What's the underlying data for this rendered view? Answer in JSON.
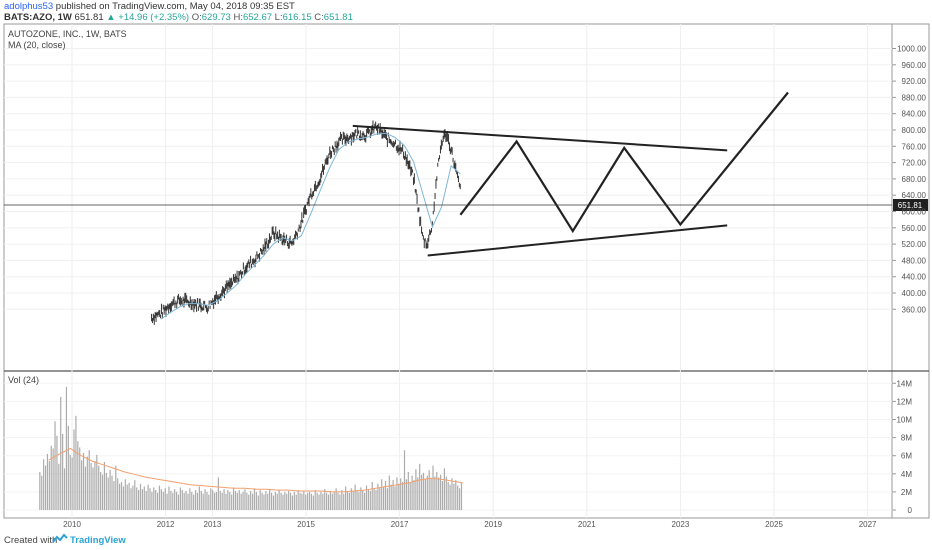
{
  "header": {
    "author": "adolphus53",
    "published_text": "published on TradingView.com, May 04, 2018 09:35 EST",
    "symbol": "BATS:AZO, 1W",
    "last": "651.81",
    "change": "+14.96 (+2.35%)",
    "o_label": "O:",
    "o_value": "629.73",
    "h_label": "H:",
    "h_value": "652.67",
    "l_label": "L:",
    "l_value": "616.15",
    "c_label": "C:",
    "c_value": "651.81"
  },
  "legend": {
    "title": "AUTOZONE, INC., 1W, BATS",
    "ma": "MA (20, close)",
    "vol": "Vol (24)"
  },
  "price_tag": "651.81",
  "footer": {
    "created": "Created with",
    "brand": "TradingView"
  },
  "colors": {
    "candles": "#333333",
    "ma": "#7fb6d6",
    "volume": "#9e9e9e",
    "vol_ma": "#f0a070",
    "projection": "#222222",
    "positive": "#26a69a"
  },
  "chart_data": [
    {
      "type": "line",
      "title": "AUTOZONE, INC., 1W, BATS",
      "x_ticks": [
        "2010",
        "2012",
        "2013",
        "2015",
        "2017",
        "2019",
        "2021",
        "2023",
        "2025",
        "2027"
      ],
      "y_ticks": [
        "360.00",
        "400.00",
        "440.00",
        "480.00",
        "520.00",
        "560.00",
        "600.00",
        "640.00",
        "680.00",
        "720.00",
        "760.00",
        "800.00",
        "840.00",
        "880.00",
        "920.00",
        "960.00",
        "1000.00"
      ],
      "ylim": [
        330,
        1000
      ],
      "series": [
        {
          "style": "price",
          "x": [
            2011.7,
            2011.9,
            2012.1,
            2012.3,
            2012.5,
            2012.7,
            2012.9,
            2013.1,
            2013.3,
            2013.5,
            2013.7,
            2013.9,
            2014.1,
            2014.3,
            2014.5,
            2014.7,
            2014.9,
            2015.1,
            2015.3,
            2015.5,
            2015.7,
            2015.9,
            2016.1,
            2016.3,
            2016.5,
            2016.7,
            2016.9,
            2017.1,
            2017.3,
            2017.5,
            2017.6,
            2017.7,
            2017.8,
            2017.9,
            2018.0,
            2018.1,
            2018.2,
            2018.3
          ],
          "values": [
            340,
            350,
            372,
            382,
            378,
            372,
            366,
            392,
            412,
            432,
            462,
            482,
            508,
            548,
            532,
            522,
            572,
            642,
            682,
            742,
            772,
            782,
            792,
            788,
            808,
            782,
            768,
            742,
            682,
            532,
            522,
            572,
            692,
            772,
            792,
            752,
            702,
            652
          ]
        },
        {
          "name": "MA (20, close)",
          "x": [
            2011.9,
            2012.1,
            2012.3,
            2012.5,
            2012.7,
            2012.9,
            2013.1,
            2013.3,
            2013.5,
            2013.7,
            2013.9,
            2014.1,
            2014.3,
            2014.5,
            2014.7,
            2014.9,
            2015.1,
            2015.3,
            2015.5,
            2015.7,
            2015.9,
            2016.1,
            2016.3,
            2016.5,
            2016.7,
            2016.9,
            2017.1,
            2017.3,
            2017.5,
            2017.7,
            2017.9,
            2018.1,
            2018.3
          ],
          "values": [
            336,
            352,
            366,
            374,
            374,
            370,
            380,
            398,
            418,
            446,
            468,
            492,
            520,
            536,
            528,
            540,
            594,
            650,
            706,
            752,
            770,
            778,
            782,
            790,
            792,
            782,
            762,
            722,
            642,
            562,
            612,
            712,
            692
          ]
        },
        {
          "style": "projection",
          "x": [
            2018.3,
            2019.5,
            2020.7,
            2021.8,
            2023.0,
            2025.3
          ],
          "values": [
            592,
            772,
            552,
            756,
            568,
            892
          ]
        },
        {
          "style": "trendline",
          "x": [
            2016.0,
            2024.0
          ],
          "values": [
            810,
            750
          ]
        },
        {
          "style": "trendline",
          "x": [
            2017.6,
            2024.0
          ],
          "values": [
            492,
            566
          ]
        }
      ]
    },
    {
      "type": "bar",
      "title": "Vol (24)",
      "y_ticks": [
        "0",
        "2M",
        "4M",
        "6M",
        "8M",
        "10M",
        "12M",
        "14M"
      ],
      "ylim": [
        0,
        14.5
      ],
      "unit": "M",
      "x_range": [
        2009.3,
        2018.35
      ],
      "values": [
        4.2,
        3.8,
        5.6,
        4.9,
        6.2,
        5.4,
        7.1,
        6.8,
        9.8,
        8.2,
        5.1,
        12.5,
        8.4,
        4.6,
        13.6,
        9.3,
        6.1,
        5.8,
        8.9,
        10.4,
        7.6,
        6.9,
        5.5,
        6.3,
        4.8,
        5.9,
        6.6,
        5.2,
        4.7,
        5.4,
        6.1,
        4.9,
        4.2,
        3.9,
        5.3,
        4.1,
        3.6,
        4.4,
        3.8,
        3.2,
        4.9,
        3.5,
        2.9,
        3.1,
        2.6,
        3.4,
        2.8,
        3.0,
        2.4,
        2.7,
        3.3,
        2.5,
        2.2,
        2.9,
        2.3,
        2.6,
        2.1,
        2.8,
        2.4,
        2.0,
        2.5,
        2.2,
        1.9,
        2.7,
        2.3,
        2.0,
        2.4,
        1.8,
        2.6,
        2.1,
        1.9,
        2.3,
        2.0,
        1.7,
        2.5,
        2.2,
        1.9,
        2.1,
        1.8,
        2.4,
        2.0,
        1.7,
        2.2,
        1.9,
        2.6,
        2.1,
        1.8,
        2.3,
        2.0,
        1.7,
        2.4,
        2.2,
        1.9,
        2.0,
        3.6,
        2.1,
        1.9,
        2.3,
        1.8,
        2.2,
        2.0,
        1.7,
        2.5,
        2.1,
        1.9,
        2.2,
        1.8,
        2.0,
        2.3,
        1.9,
        1.7,
        2.1,
        1.8,
        2.4,
        2.0,
        1.6,
        2.2,
        1.9,
        1.7,
        2.1,
        1.8,
        2.3,
        1.9,
        1.6,
        2.0,
        1.8,
        2.2,
        1.9,
        1.7,
        2.0,
        1.8,
        2.1,
        1.9,
        1.6,
        2.0,
        1.7,
        2.2,
        1.9,
        1.8,
        2.1,
        1.7,
        1.9,
        2.0,
        1.8,
        1.6,
        2.2,
        1.9,
        1.7,
        2.0,
        1.8,
        2.3,
        1.9,
        1.7,
        2.1,
        1.8,
        2.0,
        2.4,
        1.9,
        1.7,
        2.2,
        1.8,
        2.6,
        2.0,
        1.9,
        2.4,
        2.1,
        2.8,
        2.2,
        2.0,
        2.5,
        2.2,
        1.9,
        2.7,
        2.3,
        2.1,
        3.1,
        2.4,
        2.2,
        2.9,
        2.5,
        3.4,
        2.6,
        3.2,
        2.4,
        3.8,
        2.8,
        3.3,
        2.6,
        3.6,
        2.9,
        3.5,
        3.1,
        6.6,
        3.4,
        4.2,
        3.0,
        3.8,
        3.3,
        4.5,
        3.6,
        5.1,
        3.9,
        4.1,
        3.4,
        3.8,
        4.4,
        3.5,
        4.9,
        3.7,
        4.2,
        3.6,
        3.9,
        3.2,
        4.6,
        3.7,
        3.1,
        2.8,
        3.5,
        2.9,
        3.3,
        2.7,
        2.4,
        3.0
      ]
    }
  ],
  "vol_ma": {
    "x_range": [
      2009.5,
      2018.35
    ],
    "values": [
      5.5,
      6.2,
      6.8,
      6.0,
      5.4,
      5.0,
      4.6,
      4.2,
      3.9,
      3.6,
      3.4,
      3.2,
      3.0,
      2.8,
      2.7,
      2.6,
      2.5,
      2.4,
      2.4,
      2.3,
      2.3,
      2.2,
      2.2,
      2.1,
      2.1,
      2.1,
      2.0,
      2.0,
      2.1,
      2.2,
      2.4,
      2.6,
      2.8,
      3.0,
      3.3,
      3.5,
      3.4,
      3.2,
      3.0
    ]
  }
}
